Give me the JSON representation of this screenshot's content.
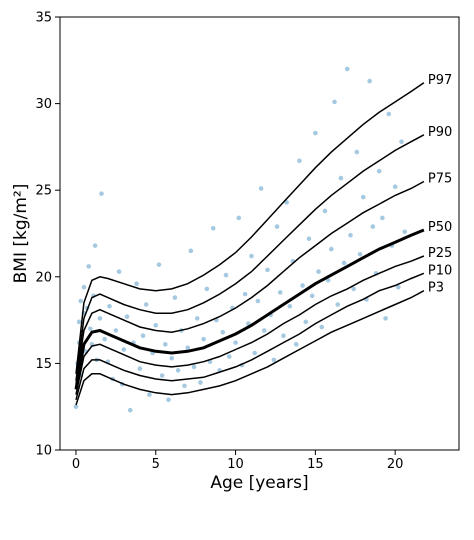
{
  "chart_data": {
    "type": "scatter",
    "title": "",
    "xlabel": "Age [years]",
    "ylabel": "BMI [kg/m²]",
    "xlim": [
      -1,
      24
    ],
    "ylim": [
      10,
      35
    ],
    "xticks": [
      0,
      5,
      10,
      15,
      20
    ],
    "yticks": [
      10,
      15,
      20,
      25,
      30,
      35
    ],
    "grid": false,
    "point_color": "#1f77b4",
    "line_color": "#000000",
    "scatter_series": {
      "name": "",
      "points": [
        [
          0.0,
          12.5
        ],
        [
          0.1,
          13.6
        ],
        [
          0.1,
          15.0
        ],
        [
          0.2,
          16.2
        ],
        [
          0.2,
          17.4
        ],
        [
          0.3,
          14.3
        ],
        [
          0.3,
          18.6
        ],
        [
          0.4,
          16.8
        ],
        [
          0.5,
          17.9
        ],
        [
          0.5,
          19.4
        ],
        [
          0.6,
          15.7
        ],
        [
          0.7,
          18.2
        ],
        [
          0.8,
          20.6
        ],
        [
          0.9,
          17.0
        ],
        [
          1.0,
          16.1
        ],
        [
          1.1,
          18.9
        ],
        [
          1.2,
          21.8
        ],
        [
          1.3,
          15.2
        ],
        [
          1.5,
          17.6
        ],
        [
          1.6,
          24.8
        ],
        [
          1.8,
          16.4
        ],
        [
          2.0,
          15.1
        ],
        [
          2.1,
          18.3
        ],
        [
          2.3,
          14.1
        ],
        [
          2.5,
          16.9
        ],
        [
          2.7,
          20.3
        ],
        [
          2.9,
          13.8
        ],
        [
          3.0,
          15.8
        ],
        [
          3.2,
          17.7
        ],
        [
          3.4,
          12.3
        ],
        [
          3.6,
          16.2
        ],
        [
          3.8,
          19.6
        ],
        [
          4.0,
          14.7
        ],
        [
          4.2,
          16.6
        ],
        [
          4.4,
          18.4
        ],
        [
          4.6,
          13.2
        ],
        [
          4.8,
          15.6
        ],
        [
          5.0,
          17.2
        ],
        [
          5.2,
          20.7
        ],
        [
          5.4,
          14.3
        ],
        [
          5.6,
          16.1
        ],
        [
          5.8,
          12.9
        ],
        [
          6.0,
          15.3
        ],
        [
          6.2,
          18.8
        ],
        [
          6.4,
          14.6
        ],
        [
          6.6,
          16.9
        ],
        [
          6.8,
          13.7
        ],
        [
          7.0,
          15.9
        ],
        [
          7.2,
          21.5
        ],
        [
          7.4,
          14.8
        ],
        [
          7.6,
          17.6
        ],
        [
          7.8,
          13.9
        ],
        [
          8.0,
          16.4
        ],
        [
          8.2,
          19.3
        ],
        [
          8.4,
          15.1
        ],
        [
          8.6,
          22.8
        ],
        [
          8.8,
          17.5
        ],
        [
          9.0,
          14.6
        ],
        [
          9.2,
          16.8
        ],
        [
          9.4,
          20.1
        ],
        [
          9.6,
          15.4
        ],
        [
          9.8,
          18.2
        ],
        [
          10.0,
          16.2
        ],
        [
          10.2,
          23.4
        ],
        [
          10.4,
          14.9
        ],
        [
          10.6,
          19.0
        ],
        [
          10.8,
          17.3
        ],
        [
          11.0,
          21.2
        ],
        [
          11.2,
          15.6
        ],
        [
          11.4,
          18.6
        ],
        [
          11.6,
          25.1
        ],
        [
          11.8,
          16.9
        ],
        [
          12.0,
          20.4
        ],
        [
          12.2,
          17.8
        ],
        [
          12.4,
          15.2
        ],
        [
          12.6,
          22.9
        ],
        [
          12.8,
          19.1
        ],
        [
          13.0,
          16.6
        ],
        [
          13.2,
          24.3
        ],
        [
          13.4,
          18.3
        ],
        [
          13.6,
          20.9
        ],
        [
          13.8,
          16.1
        ],
        [
          14.0,
          26.7
        ],
        [
          14.2,
          19.5
        ],
        [
          14.4,
          17.4
        ],
        [
          14.6,
          22.2
        ],
        [
          14.8,
          18.9
        ],
        [
          15.0,
          28.3
        ],
        [
          15.2,
          20.3
        ],
        [
          15.4,
          17.1
        ],
        [
          15.6,
          23.8
        ],
        [
          15.8,
          19.8
        ],
        [
          16.0,
          21.6
        ],
        [
          16.2,
          30.1
        ],
        [
          16.4,
          18.4
        ],
        [
          16.6,
          25.7
        ],
        [
          16.8,
          20.8
        ],
        [
          17.0,
          32.0
        ],
        [
          17.2,
          22.4
        ],
        [
          17.4,
          19.3
        ],
        [
          17.6,
          27.2
        ],
        [
          17.8,
          21.3
        ],
        [
          18.0,
          24.6
        ],
        [
          18.2,
          18.7
        ],
        [
          18.4,
          31.3
        ],
        [
          18.6,
          22.9
        ],
        [
          18.8,
          20.2
        ],
        [
          19.0,
          26.1
        ],
        [
          19.2,
          23.4
        ],
        [
          19.4,
          17.6
        ],
        [
          19.6,
          29.4
        ],
        [
          19.8,
          21.8
        ],
        [
          20.0,
          25.2
        ],
        [
          20.2,
          19.4
        ],
        [
          20.4,
          27.8
        ],
        [
          20.6,
          22.6
        ]
      ]
    },
    "series": [
      {
        "name": "P97",
        "x": [
          0,
          0.5,
          1,
          1.5,
          2,
          3,
          4,
          5,
          6,
          7,
          8,
          9,
          10,
          11,
          12,
          13,
          14,
          15,
          16,
          17,
          18,
          19,
          20,
          21,
          21.8
        ],
        "values": [
          14.4,
          18.5,
          19.8,
          20.0,
          19.9,
          19.6,
          19.3,
          19.2,
          19.3,
          19.6,
          20.1,
          20.7,
          21.4,
          22.3,
          23.3,
          24.3,
          25.3,
          26.3,
          27.2,
          28.0,
          28.8,
          29.5,
          30.1,
          30.7,
          31.2
        ]
      },
      {
        "name": "P90",
        "x": [
          0,
          0.5,
          1,
          1.5,
          2,
          3,
          4,
          5,
          6,
          7,
          8,
          9,
          10,
          11,
          12,
          13,
          14,
          15,
          16,
          17,
          18,
          19,
          20,
          21,
          21.8
        ],
        "values": [
          14.0,
          17.6,
          18.8,
          19.0,
          18.8,
          18.4,
          18.1,
          17.9,
          17.9,
          18.1,
          18.5,
          19.0,
          19.6,
          20.3,
          21.2,
          22.1,
          23.0,
          23.9,
          24.7,
          25.4,
          26.1,
          26.7,
          27.3,
          27.8,
          28.2
        ]
      },
      {
        "name": "P75",
        "x": [
          0,
          0.5,
          1,
          1.5,
          2,
          3,
          4,
          5,
          6,
          7,
          8,
          9,
          10,
          11,
          12,
          13,
          14,
          15,
          16,
          17,
          18,
          19,
          20,
          21,
          21.8
        ],
        "values": [
          13.8,
          16.9,
          17.9,
          18.1,
          17.9,
          17.5,
          17.1,
          16.9,
          16.8,
          17.0,
          17.3,
          17.7,
          18.2,
          18.8,
          19.5,
          20.3,
          21.1,
          21.8,
          22.5,
          23.1,
          23.7,
          24.2,
          24.7,
          25.1,
          25.5
        ]
      },
      {
        "name": "P50",
        "x": [
          0,
          0.5,
          1,
          1.5,
          2,
          3,
          4,
          5,
          6,
          7,
          8,
          9,
          10,
          11,
          12,
          13,
          14,
          15,
          16,
          17,
          18,
          19,
          20,
          21,
          21.8
        ],
        "values": [
          13.5,
          16.1,
          16.8,
          16.9,
          16.7,
          16.3,
          15.9,
          15.7,
          15.6,
          15.7,
          15.9,
          16.3,
          16.7,
          17.2,
          17.8,
          18.4,
          19.0,
          19.6,
          20.1,
          20.6,
          21.1,
          21.6,
          22.0,
          22.4,
          22.7
        ]
      },
      {
        "name": "P25",
        "x": [
          0,
          0.5,
          1,
          1.5,
          2,
          3,
          4,
          5,
          6,
          7,
          8,
          9,
          10,
          11,
          12,
          13,
          14,
          15,
          16,
          17,
          18,
          19,
          20,
          21,
          21.8
        ],
        "values": [
          13.2,
          15.4,
          16.0,
          16.1,
          15.9,
          15.5,
          15.1,
          14.9,
          14.8,
          14.9,
          15.1,
          15.4,
          15.8,
          16.2,
          16.7,
          17.3,
          17.8,
          18.4,
          18.9,
          19.3,
          19.8,
          20.2,
          20.6,
          20.9,
          21.2
        ]
      },
      {
        "name": "P10",
        "x": [
          0,
          0.5,
          1,
          1.5,
          2,
          3,
          4,
          5,
          6,
          7,
          8,
          9,
          10,
          11,
          12,
          13,
          14,
          15,
          16,
          17,
          18,
          19,
          20,
          21,
          21.8
        ],
        "values": [
          12.9,
          14.7,
          15.2,
          15.2,
          15.0,
          14.6,
          14.3,
          14.1,
          14.0,
          14.1,
          14.2,
          14.5,
          14.8,
          15.2,
          15.7,
          16.2,
          16.7,
          17.3,
          17.8,
          18.3,
          18.7,
          19.2,
          19.5,
          19.9,
          20.2
        ]
      },
      {
        "name": "P3",
        "x": [
          0,
          0.5,
          1,
          1.5,
          2,
          3,
          4,
          5,
          6,
          7,
          8,
          9,
          10,
          11,
          12,
          13,
          14,
          15,
          16,
          17,
          18,
          19,
          20,
          21,
          21.8
        ],
        "values": [
          12.6,
          14.0,
          14.4,
          14.4,
          14.2,
          13.8,
          13.5,
          13.3,
          13.2,
          13.3,
          13.5,
          13.7,
          14.0,
          14.4,
          14.8,
          15.3,
          15.8,
          16.3,
          16.8,
          17.2,
          17.6,
          18.0,
          18.4,
          18.8,
          19.2
        ]
      }
    ]
  }
}
